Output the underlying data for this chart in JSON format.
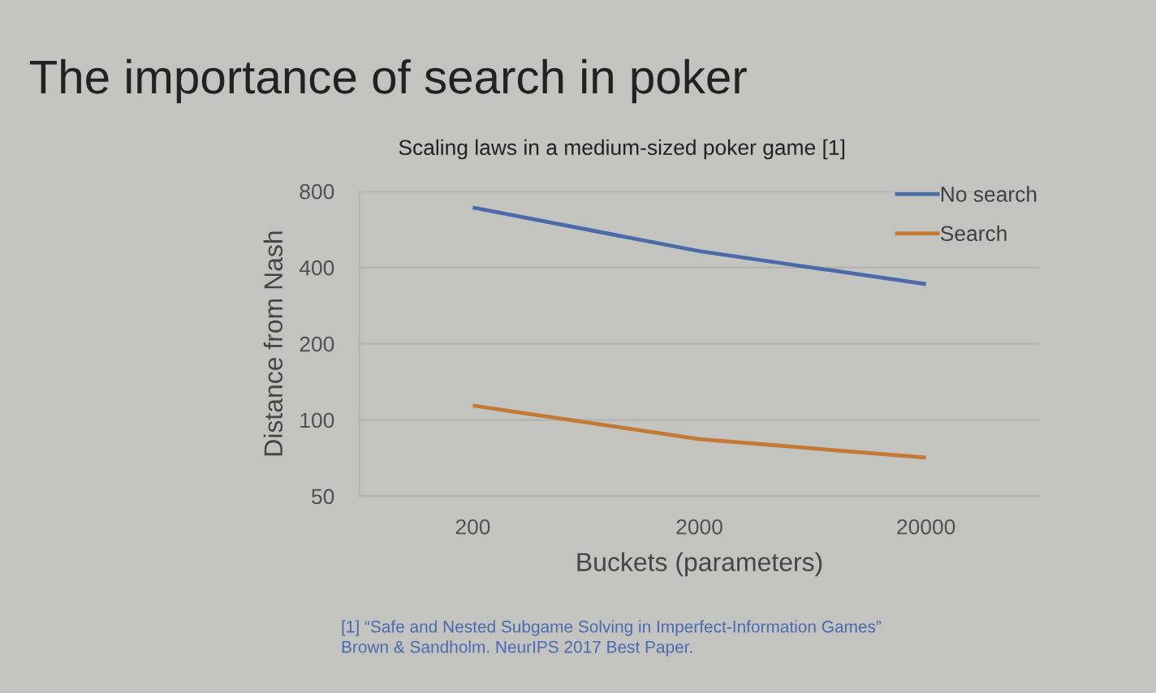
{
  "chart_data": {
    "type": "line",
    "title": "The importance of search in poker",
    "subtitle": "Scaling laws in a medium-sized poker game [1]",
    "xlabel": "Buckets (parameters)",
    "ylabel": "Distance from Nash",
    "categories": [
      "200",
      "2000",
      "20000"
    ],
    "series": [
      {
        "name": "No search",
        "color": "#4a6aa8",
        "values": [
          690,
          464,
          344
        ]
      },
      {
        "name": "Search",
        "color": "#c47a35",
        "values": [
          114,
          84,
          71
        ]
      }
    ],
    "log": "y",
    "ylim": [
      50,
      800
    ],
    "yticks": [
      50,
      100,
      200,
      400,
      800
    ],
    "grid": "y",
    "legend": "top right",
    "line_style": "solid",
    "annotations": [
      "[1] “Safe and Nested Subgame Solving in Imperfect-Information Games”",
      "Brown & Sandholm. NeurIPS 2017 Best Paper."
    ]
  }
}
